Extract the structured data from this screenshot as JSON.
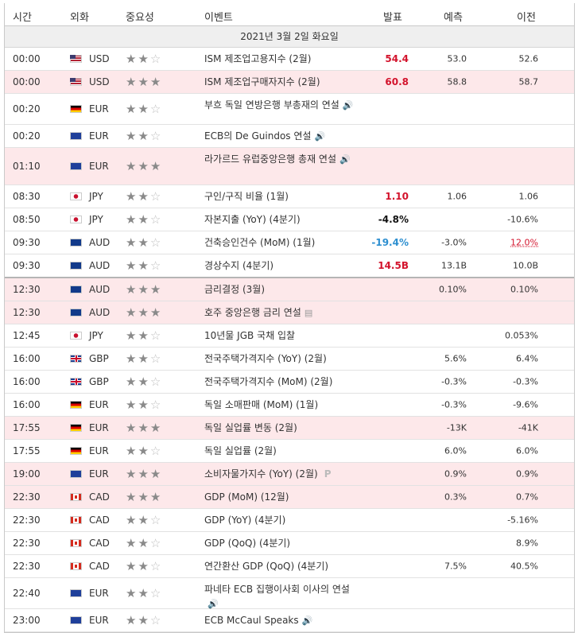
{
  "header": {
    "time": "시간",
    "currency": "외화",
    "importance": "중요성",
    "event": "이벤트",
    "actual": "발표",
    "forecast": "예측",
    "previous": "이전"
  },
  "date_band": "2021년 3월 2일 화요일",
  "rows": [
    {
      "time": "00:00",
      "flag": "usd",
      "currency": "USD",
      "stars": 2,
      "event": "ISM 제조업고용지수 (2월)",
      "actual": "54.4",
      "actual_color": "red",
      "forecast": "53.0",
      "previous": "52.6",
      "highlight": false
    },
    {
      "time": "00:00",
      "flag": "usd",
      "currency": "USD",
      "stars": 3,
      "event": "ISM 제조업구매자지수 (2월)",
      "actual": "60.8",
      "actual_color": "red",
      "forecast": "58.8",
      "previous": "58.7",
      "highlight": true
    },
    {
      "time": "00:20",
      "flag": "de",
      "currency": "EUR",
      "stars": 2,
      "event": "부흐 독일 연방은행 부총재의 연설",
      "icon": "speaker-icon",
      "actual": "",
      "forecast": "",
      "previous": "",
      "highlight": false
    },
    {
      "time": "00:20",
      "flag": "eur",
      "currency": "EUR",
      "stars": 2,
      "event": "ECB의 De Guindos 연설",
      "icon": "speaker-icon",
      "actual": "",
      "forecast": "",
      "previous": "",
      "highlight": false
    },
    {
      "time": "01:10",
      "flag": "eur",
      "currency": "EUR",
      "stars": 3,
      "event": "라가르드 유럽중앙은행 총재 연설",
      "icon": "speaker-icon",
      "actual": "",
      "forecast": "",
      "previous": "",
      "highlight": true
    },
    {
      "time": "08:30",
      "flag": "jpy",
      "currency": "JPY",
      "stars": 2,
      "event": "구인/구직 비율 (1월)",
      "actual": "1.10",
      "actual_color": "red",
      "forecast": "1.06",
      "previous": "1.06",
      "highlight": false
    },
    {
      "time": "08:50",
      "flag": "jpy",
      "currency": "JPY",
      "stars": 2,
      "event": "자본지출 (YoY) (4분기)",
      "actual": "-4.8%",
      "actual_color": "black",
      "forecast": "",
      "previous": "-10.6%",
      "highlight": false
    },
    {
      "time": "09:30",
      "flag": "aud",
      "currency": "AUD",
      "stars": 2,
      "event": "건축승인건수 (MoM) (1월)",
      "actual": "-19.4%",
      "actual_color": "blue",
      "forecast": "-3.0%",
      "previous": "12.0%",
      "previous_style": "red-underline",
      "highlight": false
    },
    {
      "time": "09:30",
      "flag": "aud",
      "currency": "AUD",
      "stars": 2,
      "event": "경상수지 (4분기)",
      "actual": "14.5B",
      "actual_color": "red",
      "forecast": "13.1B",
      "previous": "10.0B",
      "highlight": false,
      "thick": true
    },
    {
      "time": "12:30",
      "flag": "aud",
      "currency": "AUD",
      "stars": 3,
      "event": "금리결정 (3월)",
      "actual": "",
      "forecast": "0.10%",
      "previous": "0.10%",
      "highlight": true
    },
    {
      "time": "12:30",
      "flag": "aud",
      "currency": "AUD",
      "stars": 3,
      "event": "호주 중앙은행 금리 연설",
      "icon": "document-icon",
      "actual": "",
      "forecast": "",
      "previous": "",
      "highlight": true
    },
    {
      "time": "12:45",
      "flag": "jpy",
      "currency": "JPY",
      "stars": 2,
      "event": "10년물 JGB 국채 입찰",
      "actual": "",
      "forecast": "",
      "previous": "0.053%",
      "highlight": false
    },
    {
      "time": "16:00",
      "flag": "gbp",
      "currency": "GBP",
      "stars": 2,
      "event": "전국주택가격지수 (YoY) (2월)",
      "actual": "",
      "forecast": "5.6%",
      "previous": "6.4%",
      "highlight": false
    },
    {
      "time": "16:00",
      "flag": "gbp",
      "currency": "GBP",
      "stars": 2,
      "event": "전국주택가격지수 (MoM) (2월)",
      "actual": "",
      "forecast": "-0.3%",
      "previous": "-0.3%",
      "highlight": false
    },
    {
      "time": "16:00",
      "flag": "de",
      "currency": "EUR",
      "stars": 2,
      "event": "독일 소매판매 (MoM) (1월)",
      "actual": "",
      "forecast": "-0.3%",
      "previous": "-9.6%",
      "highlight": false
    },
    {
      "time": "17:55",
      "flag": "de",
      "currency": "EUR",
      "stars": 3,
      "event": "독일 실업률 변동 (2월)",
      "actual": "",
      "forecast": "-13K",
      "previous": "-41K",
      "highlight": true
    },
    {
      "time": "17:55",
      "flag": "de",
      "currency": "EUR",
      "stars": 2,
      "event": "독일 실업률 (2월)",
      "actual": "",
      "forecast": "6.0%",
      "previous": "6.0%",
      "highlight": false
    },
    {
      "time": "19:00",
      "flag": "eur",
      "currency": "EUR",
      "stars": 3,
      "event": "소비자물가지수 (YoY) (2월)",
      "icon": "preliminary-p-icon",
      "icon_text": "P",
      "actual": "",
      "forecast": "0.9%",
      "previous": "0.9%",
      "highlight": true
    },
    {
      "time": "22:30",
      "flag": "cad",
      "currency": "CAD",
      "stars": 3,
      "event": "GDP (MoM) (12월)",
      "actual": "",
      "forecast": "0.3%",
      "previous": "0.7%",
      "highlight": true
    },
    {
      "time": "22:30",
      "flag": "cad",
      "currency": "CAD",
      "stars": 2,
      "event": "GDP (YoY) (4분기)",
      "actual": "",
      "forecast": "",
      "previous": "-5.16%",
      "highlight": false
    },
    {
      "time": "22:30",
      "flag": "cad",
      "currency": "CAD",
      "stars": 2,
      "event": "GDP (QoQ) (4분기)",
      "actual": "",
      "forecast": "",
      "previous": "8.9%",
      "highlight": false
    },
    {
      "time": "22:30",
      "flag": "cad",
      "currency": "CAD",
      "stars": 2,
      "event": "연간환산 GDP (QoQ) (4분기)",
      "actual": "",
      "forecast": "7.5%",
      "previous": "40.5%",
      "highlight": false
    },
    {
      "time": "22:40",
      "flag": "eur",
      "currency": "EUR",
      "stars": 2,
      "event": "파네타 ECB 집행이사회 이사의 연설",
      "icon": "speaker-icon",
      "actual": "",
      "forecast": "",
      "previous": "",
      "highlight": false
    },
    {
      "time": "23:00",
      "flag": "eur",
      "currency": "EUR",
      "stars": 2,
      "event": "ECB McCaul Speaks",
      "icon": "speaker-icon",
      "actual": "",
      "forecast": "",
      "previous": "",
      "highlight": false
    }
  ],
  "colors": {
    "highlight_row": "#fde8ea",
    "actual_red": "#d3132c",
    "actual_blue": "#2d8fd0",
    "date_band": "#efefef"
  }
}
